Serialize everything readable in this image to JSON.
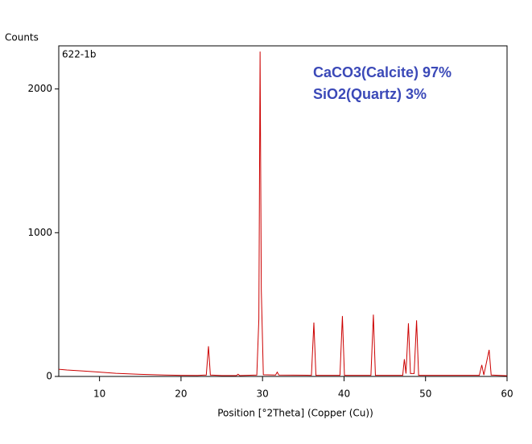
{
  "chart_data": {
    "type": "line",
    "y_axis_title": "Counts",
    "sample_label": "622-1b",
    "annotations": [
      "CaCO3(Calcite) 97%",
      "SiO2(Quartz) 3%"
    ],
    "x_axis_title": "Position [°2Theta] (Copper (Cu))",
    "x": [
      5,
      6,
      8,
      10,
      12,
      15,
      18,
      20,
      22,
      23.1,
      23.37,
      23.6,
      25,
      26.8,
      27,
      27.2,
      29.3,
      29.55,
      29.7,
      29.85,
      30.1,
      31.6,
      31.8,
      32.0,
      36.0,
      36.3,
      36.55,
      39.5,
      39.8,
      40.05,
      43.3,
      43.6,
      43.85,
      47.2,
      47.4,
      47.6,
      47.9,
      48.15,
      48.6,
      48.9,
      49.15,
      56.6,
      56.9,
      57.15,
      57.8,
      58.05,
      60
    ],
    "series": [
      {
        "color": "#cc0000",
        "values": [
          50,
          45,
          38,
          30,
          22,
          15,
          10,
          8,
          7,
          10,
          210,
          10,
          6,
          6,
          15,
          6,
          10,
          400,
          2260,
          600,
          12,
          10,
          30,
          10,
          8,
          375,
          8,
          8,
          420,
          8,
          8,
          430,
          8,
          8,
          120,
          20,
          370,
          20,
          20,
          390,
          8,
          8,
          80,
          10,
          185,
          10,
          5
        ]
      }
    ],
    "xlim": [
      5,
      60
    ],
    "ylim": [
      0,
      2300
    ],
    "xticks": [
      10,
      20,
      30,
      40,
      50,
      60
    ],
    "yticks": [
      0,
      1000,
      2000
    ]
  }
}
